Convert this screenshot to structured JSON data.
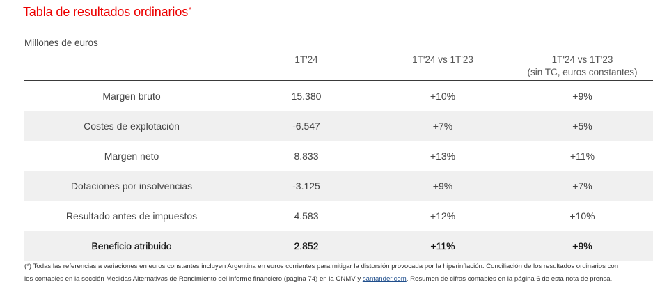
{
  "title": {
    "text": "Tabla de resultados ordinarios",
    "marker": "*"
  },
  "unit_label": "Millones de euros",
  "colors": {
    "accent": "#EC0000",
    "row_alt_bg": "#F0F0F0",
    "rule": "#333333",
    "link": "#1F4E8C"
  },
  "table": {
    "columns": [
      {
        "label": "1T'24"
      },
      {
        "label": "1T'24 vs 1T'23"
      },
      {
        "label": "1T'24 vs 1T'23",
        "note": "(sin TC, euros constantes)"
      }
    ],
    "rows": [
      {
        "label": "Margen bruto",
        "value": "15.380",
        "var": "+10%",
        "var_const": "+9%"
      },
      {
        "label": "Costes de explotación",
        "value": "-6.547",
        "var": "+7%",
        "var_const": "+5%"
      },
      {
        "label": "Margen neto",
        "value": "8.833",
        "var": "+13%",
        "var_const": "+11%"
      },
      {
        "label": "Dotaciones por insolvencias",
        "value": "-3.125",
        "var": "+9%",
        "var_const": "+7%"
      },
      {
        "label": "Resultado antes de impuestos",
        "value": "4.583",
        "var": "+12%",
        "var_const": "+10%"
      },
      {
        "label": "Beneficio atribuido",
        "value": "2.852",
        "var": "+11%",
        "var_const": "+9%"
      }
    ]
  },
  "footnote": {
    "line1": "(*) Todas las referencias a variaciones en euros constantes incluyen Argentina en euros corrientes para mitigar la distorsión provocada por la hiperinflación. Conciliación de los resultados ordinarios con",
    "line2_before": "los contables en la sección Medidas Alternativas de Rendimiento del informe financiero (página 74) en la CNMV y ",
    "link_text": "santander.com",
    "line2_after": ". Resumen de cifras contables en la página 6 de esta nota de prensa."
  }
}
